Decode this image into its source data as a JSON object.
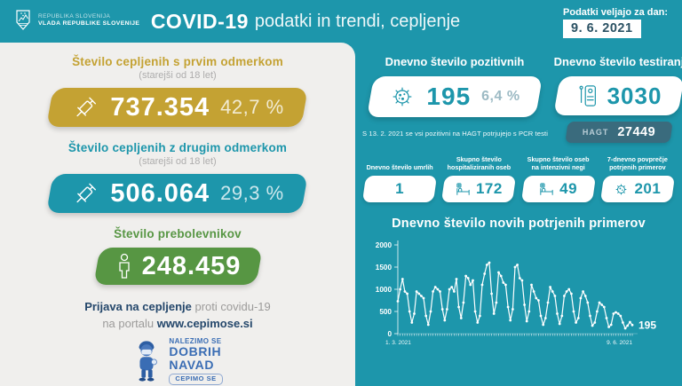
{
  "header": {
    "logo_line1": "REPUBLIKA SLOVENIJA",
    "logo_line2": "VLADA REPUBLIKE SLOVENIJE",
    "title_bold": "COVID-19",
    "title_rest": "podatki in trendi, cepljenje",
    "date_label": "Podatki veljajo za dan:",
    "date_value": "9. 6. 2021"
  },
  "vaccination": {
    "first_dose": {
      "title": "Število cepljenih s prvim odmerkom",
      "subtitle": "(starejši od 18 let)",
      "value": "737.354",
      "percent": "42,7 %"
    },
    "second_dose": {
      "title": "Število cepljenih z drugim odmerkom",
      "subtitle": "(starejši od 18 let)",
      "value": "506.064",
      "percent": "29,3 %"
    },
    "recovered": {
      "title": "Število prebolevnikov",
      "value": "248.459"
    }
  },
  "signup": {
    "bold1": "Prijava na cepljenje",
    "rest1": " proti covidu-19",
    "rest2": "na portalu ",
    "url": "www.cepimose.si"
  },
  "campaign": {
    "line1": "NALEZIMO SE",
    "line2": "DOBRIH",
    "line3": "NAVAD",
    "badge": "CEPIMO SE"
  },
  "stats": {
    "positive": {
      "title": "Dnevno število pozitivnih",
      "value": "195",
      "percent": "6,4 %"
    },
    "positive_note": "S 13. 2. 2021 se vsi pozitivni na HAGT potrjujejo s PCR testi",
    "tests": {
      "title": "Dnevno število testiranj",
      "value": "3030",
      "hagt_label": "HAGT",
      "hagt_value": "27449"
    },
    "boxes": [
      {
        "label": "Dnevno število umrlih",
        "value": "1",
        "icon": "none"
      },
      {
        "label": "Skupno število hospitaliziranih oseb",
        "value": "172",
        "icon": "bed"
      },
      {
        "label": "Skupno število oseb na intenzivni negi",
        "value": "49",
        "icon": "bed"
      },
      {
        "label": "7-dnevno povprečje potrjenih primerov",
        "value": "201",
        "icon": "virus"
      }
    ]
  },
  "chart_data": {
    "type": "line",
    "title": "Dnevno število novih potrjenih primerov",
    "xlabel": "",
    "ylabel": "",
    "x_start_label": "1. 3. 2021",
    "x_end_label": "9. 6. 2021",
    "end_label": "195",
    "ylim": [
      0,
      2000
    ],
    "yticks": [
      0,
      500,
      1000,
      1500,
      2000
    ],
    "grid": false,
    "legend": "none",
    "values": [
      730,
      1000,
      1230,
      950,
      900,
      500,
      250,
      450,
      950,
      900,
      850,
      800,
      400,
      200,
      500,
      950,
      1050,
      1000,
      950,
      550,
      300,
      550,
      1000,
      1050,
      950,
      1230,
      600,
      350,
      700,
      1300,
      1250,
      1100,
      1200,
      500,
      250,
      400,
      1100,
      1350,
      1550,
      1600,
      900,
      450,
      700,
      1380,
      1300,
      1150,
      1100,
      600,
      300,
      550,
      1500,
      1550,
      1250,
      1200,
      650,
      280,
      500,
      1100,
      950,
      800,
      750,
      400,
      200,
      350,
      700,
      1050,
      950,
      850,
      450,
      220,
      400,
      850,
      950,
      1000,
      900,
      500,
      250,
      350,
      800,
      950,
      850,
      700,
      400,
      180,
      250,
      500,
      700,
      650,
      600,
      350,
      150,
      200,
      450,
      480,
      450,
      400,
      250,
      120,
      180,
      260,
      195
    ]
  },
  "colors": {
    "background_teal": "#1d96ab",
    "card_gray": "#f0efed",
    "gold": "#c4a233",
    "green": "#579643",
    "hagt_dark": "#3a6b7d",
    "navy": "#24476b",
    "campaign_blue": "#3a6db4",
    "line": "#ffffff"
  }
}
